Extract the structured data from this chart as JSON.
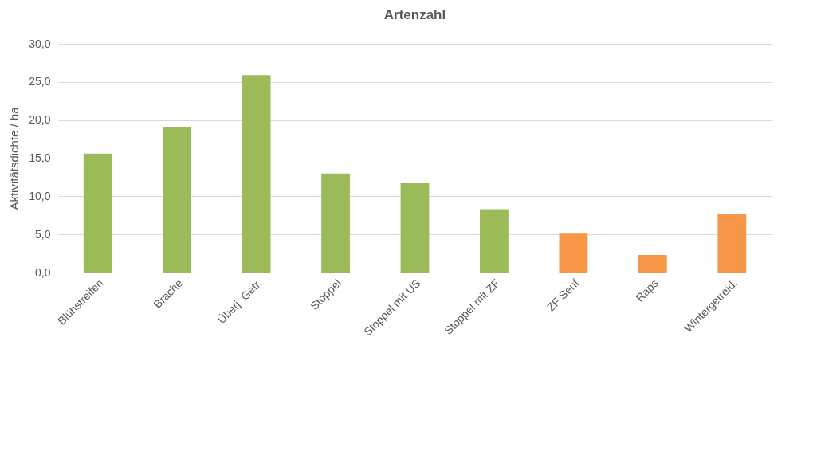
{
  "chart_data": {
    "type": "bar",
    "title": "Artenzahl",
    "ylabel": "Aktivitätsdichte / ha",
    "categories": [
      "Blühstreifen",
      "Brache",
      "Überj. Getr.",
      "Stoppel",
      "Stoppel mit US",
      "Stoppel mit ZF",
      "ZF Senf",
      "Raps",
      "Wintergetreid."
    ],
    "values": [
      15.6,
      19.1,
      25.9,
      13.0,
      11.7,
      8.3,
      5.1,
      2.3,
      7.7
    ],
    "colors": [
      "#9bbb59",
      "#9bbb59",
      "#9bbb59",
      "#9bbb59",
      "#9bbb59",
      "#9bbb59",
      "#f79646",
      "#f79646",
      "#f79646"
    ],
    "ylim": [
      0,
      30
    ],
    "yticks": [
      {
        "value": 0,
        "label": "0,0"
      },
      {
        "value": 5,
        "label": "5,0"
      },
      {
        "value": 10,
        "label": "10,0"
      },
      {
        "value": 15,
        "label": "15,0"
      },
      {
        "value": 20,
        "label": "20,0"
      },
      {
        "value": 25,
        "label": "25,0"
      },
      {
        "value": 30,
        "label": "30,0"
      }
    ],
    "grid": "y"
  }
}
